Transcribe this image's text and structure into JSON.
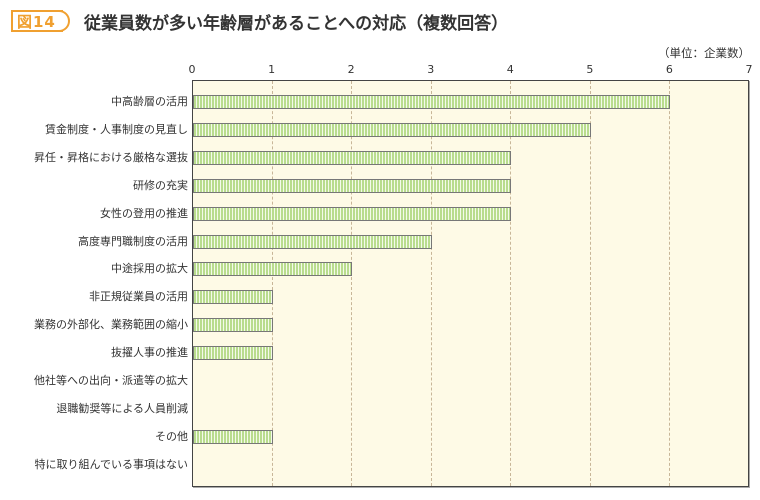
{
  "figure": {
    "label": "図14",
    "title": "従業員数が多い年齢層があることへの対応（複数回答）",
    "unit": "（単位：企業数）"
  },
  "colors": {
    "accent": "#f0a030",
    "plot_background": "#fefae6",
    "bar_fill": "#b9dc8e",
    "bar_border": "#777777",
    "gridline": "#c8b698"
  },
  "chart_data": {
    "type": "bar",
    "orientation": "horizontal",
    "title": "従業員数が多い年齢層があることへの対応（複数回答）",
    "xlabel": "（単位：企業数）",
    "ylabel": "",
    "xlim": [
      0,
      7
    ],
    "x_ticks": [
      "0",
      "1",
      "2",
      "3",
      "4",
      "5",
      "6",
      "7"
    ],
    "grid": "vertical dashed",
    "legend": "none",
    "categories": [
      "中高齢層の活用",
      "賃金制度・人事制度の見直し",
      "昇任・昇格における厳格な選抜",
      "研修の充実",
      "女性の登用の推進",
      "高度専門職制度の活用",
      "中途採用の拡大",
      "非正規従業員の活用",
      "業務の外部化、業務範囲の縮小",
      "抜擢人事の推進",
      "他社等への出向・派遣等の拡大",
      "退職勧奨等による人員削減",
      "その他",
      "特に取り組んでいる事項はない"
    ],
    "values": [
      6,
      5,
      4,
      4,
      4,
      3,
      2,
      1,
      1,
      1,
      0,
      0,
      1,
      0
    ]
  }
}
